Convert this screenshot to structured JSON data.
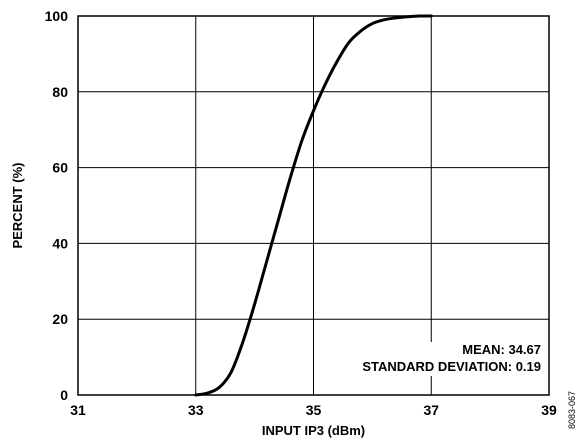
{
  "chart_data": {
    "type": "line",
    "xlabel": "INPUT IP3 (dBm)",
    "ylabel": "PERCENT (%)",
    "xlim": [
      31,
      39
    ],
    "ylim": [
      0,
      100
    ],
    "xticks": [
      "31",
      "33",
      "35",
      "37",
      "39"
    ],
    "yticks": [
      "0",
      "20",
      "40",
      "60",
      "80",
      "100"
    ],
    "grid": true,
    "series": [
      {
        "x": [
          33.0,
          33.2,
          33.4,
          33.6,
          33.8,
          34.0,
          34.2,
          34.4,
          34.6,
          34.8,
          35.0,
          35.2,
          35.4,
          35.6,
          35.8,
          36.0,
          36.2,
          36.4,
          36.6,
          36.8,
          37.0
        ],
        "y": [
          0,
          0.5,
          2,
          6,
          14,
          24,
          35,
          46,
          57,
          67,
          75,
          82,
          88,
          93,
          96,
          98,
          99,
          99.5,
          99.8,
          100,
          100
        ]
      }
    ],
    "annotations": [
      "MEAN: 34.67",
      "STANDARD DEVIATION: 0.19"
    ],
    "figure_id": "8083-067"
  }
}
